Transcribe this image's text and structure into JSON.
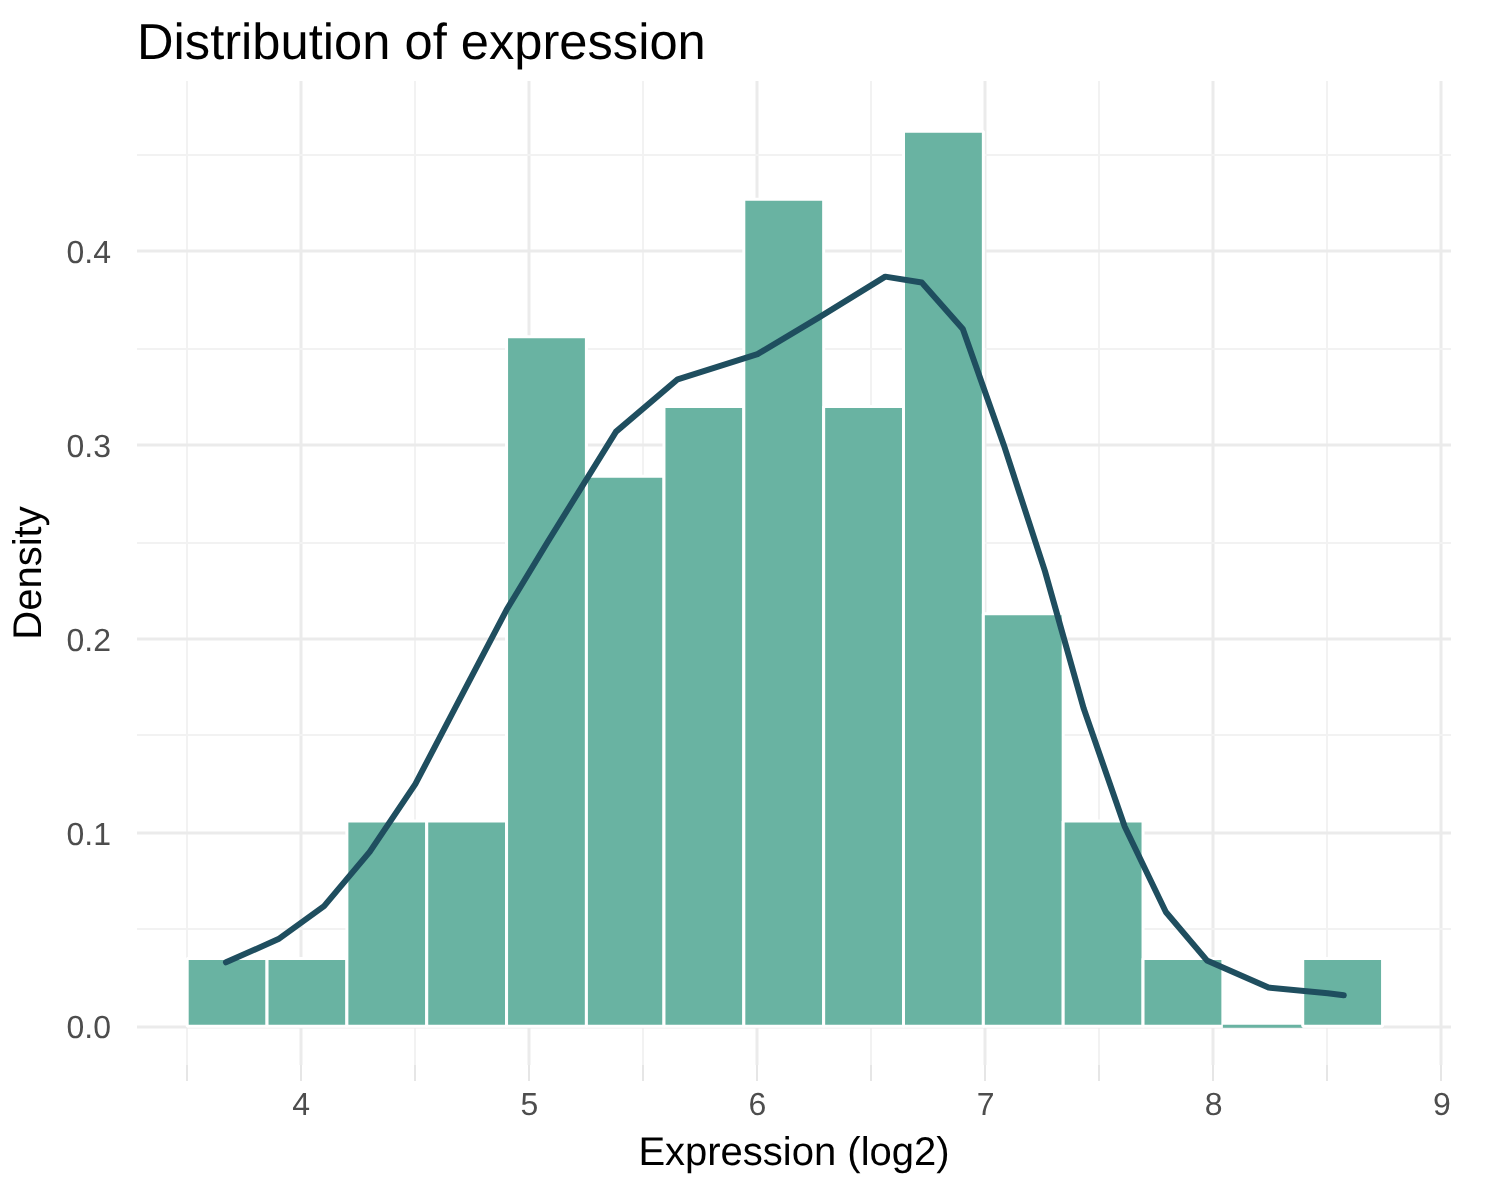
{
  "chart_data": {
    "type": "histogram",
    "title": "Distribution of expression",
    "xlabel": "Expression (log2)",
    "ylabel": "Density",
    "bins": [
      3.5,
      3.85,
      4.2,
      4.55,
      4.9,
      5.25,
      5.59,
      5.94,
      6.29,
      6.64,
      6.99,
      7.34,
      7.69,
      8.04,
      8.39,
      8.74
    ],
    "values": [
      0.035,
      0.035,
      0.106,
      0.106,
      0.356,
      0.284,
      0.32,
      0.427,
      0.32,
      0.462,
      0.213,
      0.106,
      0.035,
      0,
      0.035
    ],
    "color": "#69b3a2",
    "series": [
      {
        "type": "line",
        "color": "#1f4e5f",
        "x": [
          3.67,
          3.9,
          4.1,
          4.3,
          4.5,
          4.7,
          4.9,
          5.08,
          5.38,
          5.65,
          6.0,
          6.27,
          6.56,
          6.72,
          6.9,
          7.08,
          7.26,
          7.43,
          7.61,
          7.79,
          7.97,
          8.24,
          8.5,
          8.57
        ],
        "values": [
          0.033,
          0.045,
          0.062,
          0.09,
          0.125,
          0.17,
          0.215,
          0.25,
          0.307,
          0.334,
          0.347,
          0.366,
          0.387,
          0.384,
          0.36,
          0.3,
          0.235,
          0.164,
          0.103,
          0.059,
          0.034,
          0.02,
          0.017,
          0.016
        ]
      }
    ],
    "xlim": [
      3.28,
      9.04
    ],
    "ylim": [
      -0.02,
      0.488
    ],
    "xticks": [
      4,
      5,
      6,
      7,
      8,
      9
    ],
    "yticks": [
      {
        "value": 0,
        "label": "0.0"
      },
      {
        "value": 0.1,
        "label": "0.1"
      },
      {
        "value": 0.2,
        "label": "0.2"
      },
      {
        "value": 0.3,
        "label": "0.3"
      },
      {
        "value": 0.4,
        "label": "0.4"
      }
    ],
    "grid": true
  }
}
